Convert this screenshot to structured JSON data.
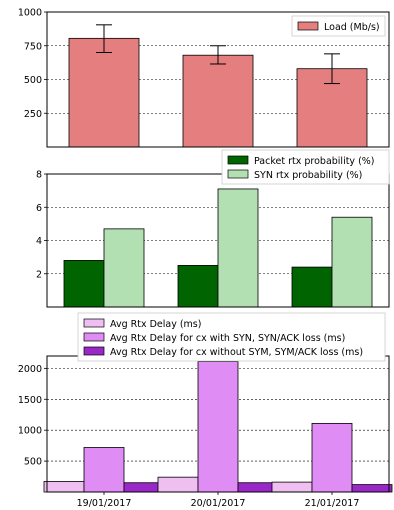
{
  "chart_data": [
    {
      "type": "bar",
      "title": "",
      "xlabel": "",
      "ylabel": "",
      "ylim": [
        0,
        1000
      ],
      "yticks": [
        250,
        500,
        750,
        1000
      ],
      "grid": true,
      "legend_position": "top-right",
      "categories": [
        "19/01/2017",
        "20/01/2017",
        "21/01/2017"
      ],
      "series": [
        {
          "name": "Load (Mb/s)",
          "color": "#e57f7f",
          "values": [
            805,
            680,
            580
          ],
          "error": [
            [
              700,
              905
            ],
            [
              615,
              750
            ],
            [
              470,
              690
            ]
          ]
        }
      ]
    },
    {
      "type": "bar",
      "title": "",
      "xlabel": "",
      "ylabel": "",
      "ylim": [
        0,
        8
      ],
      "yticks": [
        2,
        4,
        6,
        8
      ],
      "grid": true,
      "legend_position": "top-right",
      "categories": [
        "19/01/2017",
        "20/01/2017",
        "21/01/2017"
      ],
      "series": [
        {
          "name": "Packet rtx probability (%)",
          "color": "#006400",
          "values": [
            2.8,
            2.5,
            2.4
          ]
        },
        {
          "name": "SYN rtx probability (%)",
          "color": "#b3e0b3",
          "values": [
            4.7,
            7.1,
            5.4
          ]
        }
      ]
    },
    {
      "type": "bar",
      "title": "",
      "xlabel": "",
      "ylabel": "",
      "ylim": [
        0,
        2200
      ],
      "yticks": [
        500,
        1000,
        1500,
        2000
      ],
      "grid": true,
      "legend_position": "top",
      "categories": [
        "19/01/2017",
        "20/01/2017",
        "21/01/2017"
      ],
      "series": [
        {
          "name": "Avg Rtx Delay (ms)",
          "color": "#efbff2",
          "values": [
            170,
            240,
            160
          ]
        },
        {
          "name": "Avg Rtx Delay for cx with SYN, SYN/ACK loss (ms)",
          "color": "#e08cf5",
          "values": [
            720,
            2110,
            1110
          ]
        },
        {
          "name": "Avg Rtx Delay for cx without SYM, SYM/ACK loss (ms)",
          "color": "#9a28c9",
          "values": [
            150,
            150,
            120
          ]
        }
      ]
    }
  ]
}
